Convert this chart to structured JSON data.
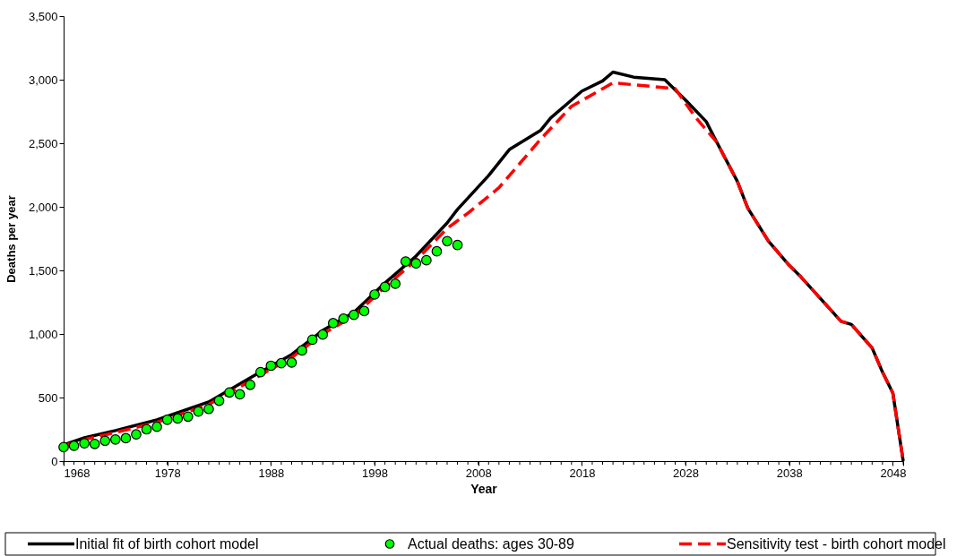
{
  "chart_data": {
    "type": "line",
    "xlabel": "Year",
    "ylabel": "Deaths per year",
    "xlim": [
      1968,
      2049
    ],
    "xticks": [
      {
        "value": 1968,
        "label": "1968"
      },
      {
        "value": 1978,
        "label": "1978"
      },
      {
        "value": 1988,
        "label": "1988"
      },
      {
        "value": 1998,
        "label": "1998"
      },
      {
        "value": 2008,
        "label": "2008"
      },
      {
        "value": 2018,
        "label": "2018"
      },
      {
        "value": 2028,
        "label": "2028"
      },
      {
        "value": 2038,
        "label": "2038"
      },
      {
        "value": 2048,
        "label": "2048"
      },
      {
        "value": 2049,
        "label": null
      }
    ],
    "ylim": [
      0,
      3500
    ],
    "yticks": [
      0,
      500,
      {
        "value": 1000,
        "label": "1,000"
      },
      {
        "value": 1500,
        "label": "1,500"
      },
      {
        "value": 2000,
        "label": "2,000"
      },
      {
        "value": 2500,
        "label": "2,500"
      },
      {
        "value": 3000,
        "label": "3,000"
      },
      {
        "value": 3500,
        "label": "3,500"
      }
    ],
    "grid": false,
    "legend": "bottom",
    "series": [
      {
        "name": "Initial fit of birth cohort model",
        "line_style": "solid",
        "color": "#000000",
        "x": [
          1968,
          1970,
          1973,
          1977,
          1982,
          1986,
          1990,
          1993,
          1996,
          1999,
          2002,
          2005,
          2006,
          2009,
          2011,
          2014,
          2015,
          2017,
          2018,
          2020,
          2021,
          2023,
          2026,
          2028,
          2030,
          2031,
          2033,
          2034,
          2036,
          2038,
          2039,
          2043,
          2044,
          2046,
          2047,
          2048,
          2049
        ],
        "values": [
          127,
          183,
          240,
          324,
          465,
          655,
          838,
          1028,
          1169,
          1401,
          1613,
          1873,
          1980,
          2246,
          2450,
          2600,
          2700,
          2840,
          2910,
          2990,
          3060,
          3020,
          3000,
          2840,
          2670,
          2510,
          2200,
          1990,
          1730,
          1540,
          1460,
          1100,
          1075,
          890,
          700,
          535,
          0
        ]
      },
      {
        "name": "Actual deaths: ages 30-89",
        "type": "scatter",
        "marker": "circle",
        "color": "#00ff00",
        "x": [
          1968,
          1969,
          1970,
          1971,
          1972,
          1973,
          1974,
          1975,
          1976,
          1977,
          1978,
          1979,
          1980,
          1981,
          1982,
          1983,
          1984,
          1985,
          1986,
          1987,
          1988,
          1989,
          1990,
          1991,
          1992,
          1993,
          1994,
          1995,
          1996,
          1997,
          1998,
          1999,
          2000,
          2001,
          2002,
          2003,
          2004,
          2005,
          2006
        ],
        "values": [
          110,
          120,
          140,
          135,
          160,
          170,
          180,
          210,
          250,
          270,
          325,
          335,
          350,
          390,
          410,
          475,
          540,
          525,
          600,
          700,
          750,
          770,
          775,
          870,
          955,
          995,
          1085,
          1120,
          1150,
          1180,
          1310,
          1370,
          1395,
          1570,
          1555,
          1580,
          1650,
          1730,
          1700
        ]
      },
      {
        "name": "Sensitivity test - birth cohort model",
        "line_style": "dashed",
        "color": "#ff0000",
        "x": [
          1968,
          1970,
          1973,
          1977,
          1982,
          1986,
          1990,
          1993,
          1996,
          1999,
          2002,
          2005,
          2007,
          2010,
          2014,
          2017,
          2021,
          2023,
          2027,
          2029,
          2031,
          2033,
          2034,
          2036,
          2038,
          2039,
          2043,
          2044,
          2046,
          2047,
          2048,
          2049
        ],
        "values": [
          120,
          170,
          225,
          305,
          445,
          630,
          815,
          1000,
          1140,
          1370,
          1580,
          1830,
          1950,
          2150,
          2530,
          2790,
          2975,
          2960,
          2930,
          2700,
          2510,
          2200,
          1990,
          1730,
          1540,
          1460,
          1100,
          1075,
          890,
          700,
          535,
          0
        ]
      }
    ]
  }
}
